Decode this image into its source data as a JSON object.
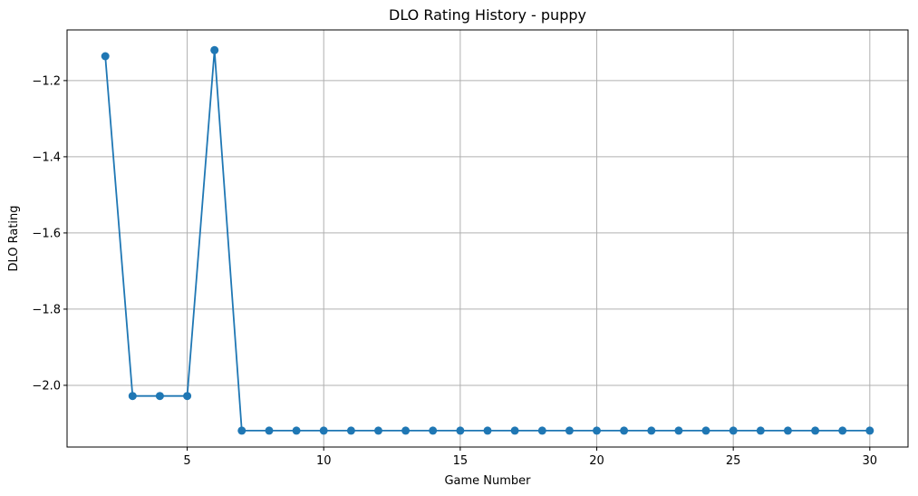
{
  "chart_data": {
    "type": "line",
    "title": "DLO Rating History - puppy",
    "xlabel": "Game Number",
    "ylabel": "DLO Rating",
    "xlim": [
      0.6,
      31.4
    ],
    "ylim": [
      -2.162,
      -1.067
    ],
    "xticks": [
      5,
      10,
      15,
      20,
      25,
      30
    ],
    "xtick_labels": [
      "5",
      "10",
      "15",
      "20",
      "25",
      "30"
    ],
    "yticks": [
      -1.2,
      -1.4,
      -1.6,
      -1.8,
      -2.0
    ],
    "ytick_labels": [
      "−1.2",
      "−1.4",
      "−1.6",
      "−1.8",
      "−2.0"
    ],
    "grid": true,
    "series": [
      {
        "color": "#1f77b4",
        "marker": "circle",
        "x": [
          2,
          3,
          4,
          5,
          6,
          7,
          8,
          9,
          10,
          11,
          12,
          13,
          14,
          15,
          16,
          17,
          18,
          19,
          20,
          21,
          22,
          23,
          24,
          25,
          26,
          27,
          28,
          29,
          30
        ],
        "y": [
          -1.136,
          -2.028,
          -2.028,
          -2.028,
          -1.12,
          -2.119,
          -2.119,
          -2.119,
          -2.119,
          -2.119,
          -2.119,
          -2.119,
          -2.119,
          -2.119,
          -2.119,
          -2.119,
          -2.119,
          -2.119,
          -2.119,
          -2.119,
          -2.119,
          -2.119,
          -2.119,
          -2.119,
          -2.119,
          -2.119,
          -2.119,
          -2.119,
          -2.119
        ]
      }
    ]
  }
}
